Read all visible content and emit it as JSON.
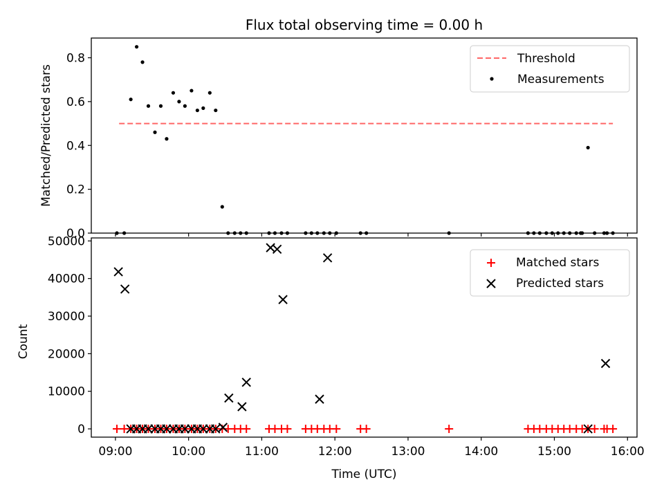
{
  "chart_data": [
    {
      "type": "scatter",
      "title": "Flux total observing time = 0.00 h",
      "xlabel": "",
      "ylabel": "Matched/Predicted stars",
      "xlim": [
        8.67,
        16.13
      ],
      "ylim": [
        0,
        0.89
      ],
      "xticks": [
        9,
        10,
        11,
        12,
        13,
        14,
        15,
        16
      ],
      "xtick_labels": [],
      "yticks": [
        0.0,
        0.2,
        0.4,
        0.6,
        0.8
      ],
      "ytick_labels": [
        "0.0",
        "0.2",
        "0.4",
        "0.6",
        "0.8"
      ],
      "legend_position": "top-right",
      "threshold": {
        "name": "Threshold",
        "y": 0.5,
        "x": [
          9.05,
          15.8
        ],
        "color": "#ff6666",
        "dash": true
      },
      "series": [
        {
          "name": "Measurements",
          "color": "#000000",
          "marker": "dot",
          "points": [
            [
              9.02,
              0.0
            ],
            [
              9.12,
              0.0
            ],
            [
              9.21,
              0.61
            ],
            [
              9.29,
              0.85
            ],
            [
              9.37,
              0.78
            ],
            [
              9.45,
              0.58
            ],
            [
              9.54,
              0.46
            ],
            [
              9.62,
              0.58
            ],
            [
              9.7,
              0.43
            ],
            [
              9.79,
              0.64
            ],
            [
              9.87,
              0.6
            ],
            [
              9.95,
              0.58
            ],
            [
              10.04,
              0.65
            ],
            [
              10.12,
              0.56
            ],
            [
              10.2,
              0.57
            ],
            [
              10.29,
              0.64
            ],
            [
              10.37,
              0.56
            ],
            [
              10.46,
              0.12
            ],
            [
              10.54,
              0.0
            ],
            [
              10.63,
              0.0
            ],
            [
              10.71,
              0.0
            ],
            [
              10.79,
              0.0
            ],
            [
              11.1,
              0.0
            ],
            [
              11.18,
              0.0
            ],
            [
              11.27,
              0.0
            ],
            [
              11.35,
              0.0
            ],
            [
              11.6,
              0.0
            ],
            [
              11.68,
              0.0
            ],
            [
              11.76,
              0.0
            ],
            [
              11.85,
              0.0
            ],
            [
              11.93,
              0.0
            ],
            [
              12.02,
              0.0
            ],
            [
              12.35,
              0.0
            ],
            [
              12.43,
              0.0
            ],
            [
              13.56,
              0.0
            ],
            [
              14.64,
              0.0
            ],
            [
              14.72,
              0.0
            ],
            [
              14.8,
              0.0
            ],
            [
              14.89,
              0.0
            ],
            [
              14.97,
              0.0
            ],
            [
              15.05,
              0.0
            ],
            [
              15.13,
              0.0
            ],
            [
              15.21,
              0.0
            ],
            [
              15.3,
              0.0
            ],
            [
              15.36,
              0.0
            ],
            [
              15.38,
              0.0
            ],
            [
              15.46,
              0.39
            ],
            [
              15.55,
              0.0
            ],
            [
              15.68,
              0.0
            ],
            [
              15.72,
              0.0
            ],
            [
              15.8,
              0.0
            ]
          ]
        }
      ]
    },
    {
      "type": "scatter",
      "title": "",
      "xlabel": "Time (UTC)",
      "ylabel": "Count",
      "xlim": [
        8.67,
        16.13
      ],
      "ylim": [
        -2200,
        50800
      ],
      "xticks": [
        9,
        10,
        11,
        12,
        13,
        14,
        15,
        16
      ],
      "xtick_labels": [
        "09:00",
        "10:00",
        "11:00",
        "12:00",
        "13:00",
        "14:00",
        "15:00",
        "16:00"
      ],
      "yticks": [
        0,
        10000,
        20000,
        30000,
        40000,
        50000
      ],
      "ytick_labels": [
        "0",
        "10000",
        "20000",
        "30000",
        "40000",
        "50000"
      ],
      "legend_position": "top-right",
      "series": [
        {
          "name": "Matched stars",
          "color": "#ff0000",
          "marker": "plus",
          "points": [
            [
              9.02,
              0
            ],
            [
              9.12,
              0
            ],
            [
              9.21,
              0
            ],
            [
              9.29,
              0
            ],
            [
              9.37,
              0
            ],
            [
              9.45,
              0
            ],
            [
              9.54,
              0
            ],
            [
              9.62,
              0
            ],
            [
              9.7,
              0
            ],
            [
              9.79,
              0
            ],
            [
              9.87,
              0
            ],
            [
              9.95,
              0
            ],
            [
              10.04,
              0
            ],
            [
              10.12,
              0
            ],
            [
              10.2,
              0
            ],
            [
              10.29,
              0
            ],
            [
              10.37,
              0
            ],
            [
              10.46,
              0
            ],
            [
              10.54,
              0
            ],
            [
              10.63,
              0
            ],
            [
              10.71,
              0
            ],
            [
              10.79,
              0
            ],
            [
              11.1,
              0
            ],
            [
              11.18,
              0
            ],
            [
              11.27,
              0
            ],
            [
              11.35,
              0
            ],
            [
              11.6,
              0
            ],
            [
              11.68,
              0
            ],
            [
              11.76,
              0
            ],
            [
              11.85,
              0
            ],
            [
              11.93,
              0
            ],
            [
              12.02,
              0
            ],
            [
              12.35,
              0
            ],
            [
              12.43,
              0
            ],
            [
              13.56,
              0
            ],
            [
              14.64,
              0
            ],
            [
              14.72,
              0
            ],
            [
              14.8,
              0
            ],
            [
              14.89,
              0
            ],
            [
              14.97,
              0
            ],
            [
              15.05,
              0
            ],
            [
              15.13,
              0
            ],
            [
              15.21,
              0
            ],
            [
              15.3,
              0
            ],
            [
              15.38,
              0
            ],
            [
              15.46,
              0
            ],
            [
              15.55,
              0
            ],
            [
              15.68,
              0
            ],
            [
              15.72,
              0
            ],
            [
              15.8,
              0
            ]
          ]
        },
        {
          "name": "Predicted stars",
          "color": "#000000",
          "marker": "x",
          "points": [
            [
              9.04,
              41800
            ],
            [
              9.13,
              37200
            ],
            [
              9.21,
              0
            ],
            [
              9.29,
              0
            ],
            [
              9.37,
              0
            ],
            [
              9.45,
              0
            ],
            [
              9.54,
              0
            ],
            [
              9.62,
              0
            ],
            [
              9.7,
              0
            ],
            [
              9.79,
              0
            ],
            [
              9.87,
              0
            ],
            [
              9.95,
              0
            ],
            [
              10.04,
              0
            ],
            [
              10.12,
              0
            ],
            [
              10.2,
              0
            ],
            [
              10.29,
              0
            ],
            [
              10.37,
              0
            ],
            [
              10.47,
              400
            ],
            [
              10.55,
              8200
            ],
            [
              10.73,
              5900
            ],
            [
              10.79,
              12400
            ],
            [
              11.12,
              48200
            ],
            [
              11.21,
              47800
            ],
            [
              11.29,
              34400
            ],
            [
              11.79,
              7900
            ],
            [
              11.9,
              45500
            ],
            [
              15.46,
              0
            ],
            [
              15.7,
              17400
            ]
          ]
        }
      ]
    }
  ]
}
